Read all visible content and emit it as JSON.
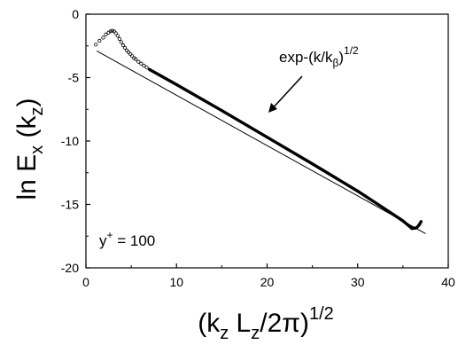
{
  "chart_data": {
    "type": "scatter",
    "title": "",
    "xlim": [
      0,
      40
    ],
    "ylim": [
      -20,
      0
    ],
    "x_ticks": [
      "0",
      "10",
      "20",
      "30",
      "40"
    ],
    "y_ticks": [
      "0",
      "-5",
      "-10",
      "-15",
      "-20"
    ],
    "xlabel": {
      "base": "(k",
      "sub1": "z",
      "mid": " L",
      "sub2": "z",
      "tail": "/2π)",
      "sup": "1/2"
    },
    "ylabel": {
      "base": "ln E",
      "sub1": "x",
      "mid": " (k",
      "sub2": "z",
      "tail": ")"
    },
    "annotations": {
      "fit_label": {
        "base": "exp-(k/k",
        "sub": "β",
        "close": ")",
        "sup": "1/2"
      },
      "yplus_label": {
        "base": "y",
        "sup": "+",
        "rest": " = 100"
      }
    },
    "series": [
      {
        "kind": "markers",
        "x": [
          1.1,
          1.5,
          1.9,
          2.2,
          2.5,
          2.7,
          2.9,
          3.1,
          3.3,
          3.5,
          3.7,
          3.9,
          4.1,
          4.3,
          4.5,
          4.7,
          4.9,
          5.1,
          5.3,
          5.5,
          5.8,
          6.1,
          6.4,
          6.7
        ],
        "y": [
          -2.4,
          -2.1,
          -1.85,
          -1.6,
          -1.45,
          -1.35,
          -1.3,
          -1.35,
          -1.5,
          -1.7,
          -1.95,
          -2.2,
          -2.45,
          -2.65,
          -2.85,
          -3.0,
          -3.15,
          -3.3,
          -3.45,
          -3.55,
          -3.75,
          -3.9,
          -4.05,
          -4.2
        ]
      },
      {
        "kind": "data",
        "x": [
          7,
          10,
          15,
          20,
          25,
          30,
          33,
          35,
          35.5,
          36,
          36.5,
          36.8,
          37
        ],
        "y": [
          -4.35,
          -5.55,
          -7.6,
          -9.7,
          -11.8,
          -13.95,
          -15.35,
          -16.3,
          -16.6,
          -16.9,
          -16.85,
          -16.6,
          -16.35
        ]
      },
      {
        "kind": "fit",
        "x": [
          1.2,
          37.5
        ],
        "y": [
          -2.9,
          -17.3
        ]
      }
    ]
  }
}
